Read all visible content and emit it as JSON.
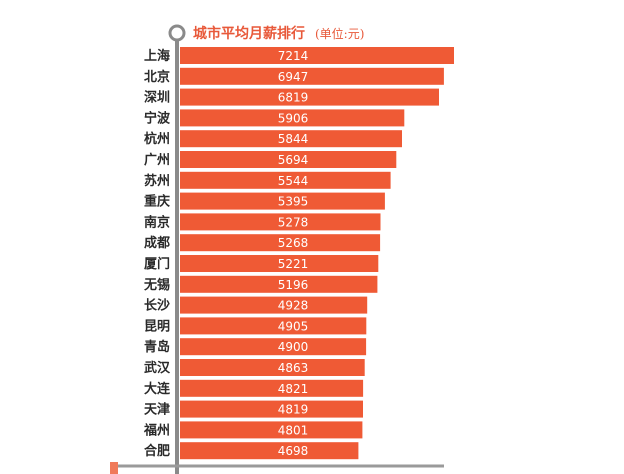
{
  "chart_data": {
    "type": "bar",
    "orientation": "horizontal",
    "title": "城市平均月薪排行",
    "unit_note": "(单位:元)",
    "categories": [
      "上海",
      "北京",
      "深圳",
      "宁波",
      "杭州",
      "广州",
      "苏州",
      "重庆",
      "南京",
      "成都",
      "厦门",
      "无锡",
      "长沙",
      "昆明",
      "青岛",
      "武汉",
      "大连",
      "天津",
      "福州",
      "合肥"
    ],
    "values": [
      7214,
      6947,
      6819,
      5906,
      5844,
      5694,
      5544,
      5395,
      5278,
      5268,
      5221,
      5196,
      4928,
      4905,
      4900,
      4863,
      4821,
      4819,
      4801,
      4698
    ],
    "bar_color": "#ef5a35",
    "axis_color": "#8a8a8a",
    "grid": false,
    "legend": "none"
  }
}
